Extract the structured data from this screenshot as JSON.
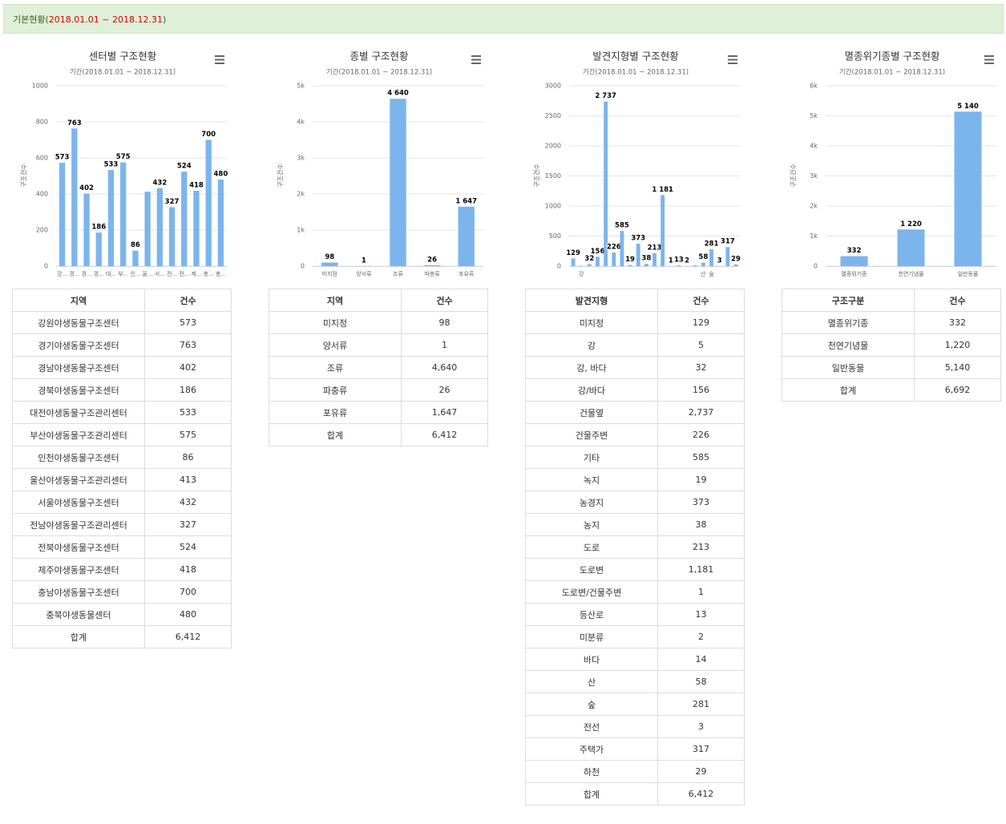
{
  "header": {
    "label": "기본현황(",
    "period": "2018.01.01 ~ 2018.12.31",
    "close": ")"
  },
  "chart_data": [
    {
      "type": "bar",
      "title": "센터별 구조현황",
      "subtitle": "기간(2018.01.01 ~ 2018.12.31)",
      "y_label": "구조건수",
      "color": "#7cb5ec",
      "grid": true,
      "categories": [
        "강...",
        "경...",
        "경...",
        "경...",
        "대...",
        "부...",
        "인...",
        "울...",
        "서...",
        "전...",
        "전...",
        "제...",
        "충...",
        "충..."
      ],
      "values": [
        573,
        763,
        402,
        186,
        533,
        575,
        86,
        413,
        432,
        327,
        524,
        418,
        700,
        480
      ],
      "value_labels": [
        "573",
        "763",
        "402",
        "186",
        "533",
        "575",
        "86",
        null,
        "432",
        "327",
        "524",
        "418",
        "700",
        "480"
      ],
      "ylim": [
        0,
        1000
      ],
      "yticks": [
        0,
        200,
        400,
        600,
        800,
        1000
      ]
    },
    {
      "type": "bar",
      "title": "종별 구조현황",
      "subtitle": "기간(2018.01.01 ~ 2018.12.31)",
      "y_label": "구조건수",
      "color": "#7cb5ec",
      "grid": true,
      "categories": [
        "미지정",
        "양서류",
        "조류",
        "파충류",
        "포유류"
      ],
      "values": [
        98,
        1,
        4640,
        26,
        1647
      ],
      "value_labels": [
        "98",
        "1",
        "4 640",
        "26",
        "1 647"
      ],
      "ylim": [
        0,
        5000
      ],
      "yticks": [
        0,
        {
          "value": 1000,
          "label": "1k"
        },
        {
          "value": 2000,
          "label": "2k"
        },
        {
          "value": 3000,
          "label": "3k"
        },
        {
          "value": 4000,
          "label": "4k"
        },
        {
          "value": 5000,
          "label": "5k"
        }
      ]
    },
    {
      "type": "bar",
      "title": "발견지형별 구조현황",
      "subtitle": "기간(2018.01.01 ~ 2018.12.31)",
      "y_label": "구조건수",
      "color": "#7cb5ec",
      "grid": true,
      "categories": [
        null,
        "강",
        null,
        null,
        null,
        null,
        null,
        null,
        null,
        null,
        null,
        null,
        null,
        null,
        null,
        null,
        "산",
        "숲",
        null,
        null,
        null
      ],
      "values": [
        129,
        5,
        32,
        156,
        2737,
        226,
        585,
        19,
        373,
        38,
        213,
        1181,
        1,
        13,
        2,
        14,
        58,
        281,
        3,
        317,
        29
      ],
      "value_labels": [
        "129",
        null,
        "32",
        "156",
        "2 737",
        "226",
        "585",
        "19",
        "373",
        "38",
        "213",
        "1 181",
        "1",
        "13",
        "2",
        null,
        "58",
        "281",
        "3",
        "317",
        "29"
      ],
      "ylim": [
        0,
        3000
      ],
      "yticks": [
        0,
        500,
        1000,
        1500,
        2000,
        2500,
        3000
      ]
    },
    {
      "type": "bar",
      "title": "멸종위기종별 구조현황",
      "subtitle": "기간(2018.01.01 ~ 2018.12.31)",
      "y_label": "구조건수",
      "color": "#7cb5ec",
      "grid": true,
      "categories": [
        "멸종위기종",
        "천연기념물",
        "일반동물"
      ],
      "values": [
        332,
        1220,
        5140
      ],
      "value_labels": [
        "332",
        "1 220",
        "5 140"
      ],
      "ylim": [
        0,
        6000
      ],
      "yticks": [
        0,
        {
          "value": 1000,
          "label": "1k"
        },
        {
          "value": 2000,
          "label": "2k"
        },
        {
          "value": 3000,
          "label": "3k"
        },
        {
          "value": 4000,
          "label": "4k"
        },
        {
          "value": 5000,
          "label": "5k"
        },
        {
          "value": 6000,
          "label": "6k"
        }
      ]
    }
  ],
  "tables": [
    {
      "columns": [
        "지역",
        "건수"
      ],
      "rows": [
        [
          "강원야생동물구조센터",
          "573"
        ],
        [
          "경기야생동물구조센터",
          "763"
        ],
        [
          "경남야생동물구조센터",
          "402"
        ],
        [
          "경북야생동물구조센터",
          "186"
        ],
        [
          "대전야생동물구조관리센터",
          "533"
        ],
        [
          "부산야생동물구조관리센터",
          "575"
        ],
        [
          "인천야생동물구조센터",
          "86"
        ],
        [
          "울산야생동물구조관리센터",
          "413"
        ],
        [
          "서울야생동물구조센터",
          "432"
        ],
        [
          "전남야생동물구조관리센터",
          "327"
        ],
        [
          "전북야생동물구조센터",
          "524"
        ],
        [
          "제주야생동물구조센터",
          "418"
        ],
        [
          "충남야생동물구조센터",
          "700"
        ],
        [
          "충북야생동물센터",
          "480"
        ],
        [
          "합계",
          "6,412"
        ]
      ]
    },
    {
      "columns": [
        "지역",
        "건수"
      ],
      "rows": [
        [
          "미지정",
          "98"
        ],
        [
          "양서류",
          "1"
        ],
        [
          "조류",
          "4,640"
        ],
        [
          "파충류",
          "26"
        ],
        [
          "포유류",
          "1,647"
        ],
        [
          "합계",
          "6,412"
        ]
      ]
    },
    {
      "columns": [
        "발견지형",
        "건수"
      ],
      "rows": [
        [
          "미지정",
          "129"
        ],
        [
          "강",
          "5"
        ],
        [
          "강, 바다",
          "32"
        ],
        [
          "강/바다",
          "156"
        ],
        [
          "건물옆",
          "2,737"
        ],
        [
          "건물주변",
          "226"
        ],
        [
          "기타",
          "585"
        ],
        [
          "녹지",
          "19"
        ],
        [
          "농경지",
          "373"
        ],
        [
          "농지",
          "38"
        ],
        [
          "도로",
          "213"
        ],
        [
          "도로변",
          "1,181"
        ],
        [
          "도로변/건물주변",
          "1"
        ],
        [
          "등산로",
          "13"
        ],
        [
          "미분류",
          "2"
        ],
        [
          "바다",
          "14"
        ],
        [
          "산",
          "58"
        ],
        [
          "숲",
          "281"
        ],
        [
          "전선",
          "3"
        ],
        [
          "주택가",
          "317"
        ],
        [
          "하천",
          "29"
        ],
        [
          "합계",
          "6,412"
        ]
      ]
    },
    {
      "columns": [
        "구조구분",
        "건수"
      ],
      "rows": [
        [
          "멸종위기종",
          "332"
        ],
        [
          "천연기념물",
          "1,220"
        ],
        [
          "일반동물",
          "5,140"
        ],
        [
          "합계",
          "6,692"
        ]
      ]
    }
  ]
}
